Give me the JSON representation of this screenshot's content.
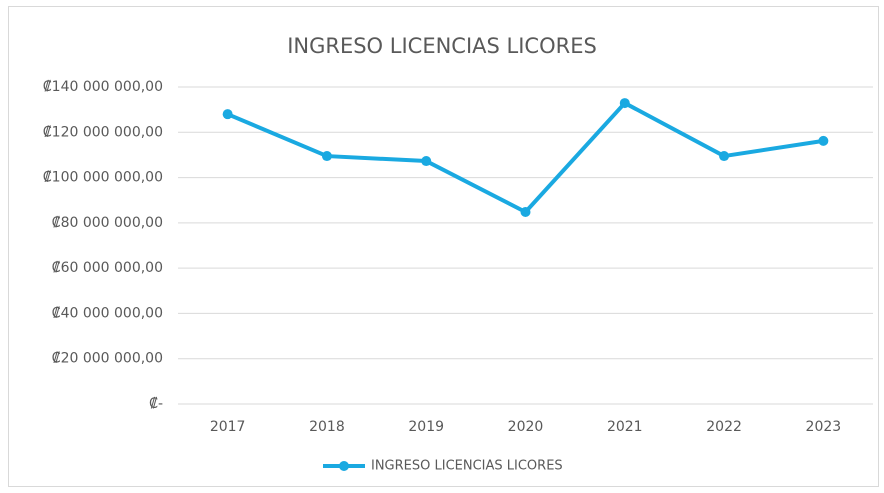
{
  "chart_data": {
    "type": "line",
    "title": "INGRESO LICENCIAS LICORES",
    "categories": [
      "2017",
      "2018",
      "2019",
      "2020",
      "2021",
      "2022",
      "2023"
    ],
    "series": [
      {
        "name": "INGRESO LICENCIAS LICORES",
        "color": "#1aa9e1",
        "values": [
          128000000,
          109500000,
          107300000,
          84800000,
          132900000,
          109500000,
          116200000
        ]
      }
    ],
    "ylim": [
      0,
      140000000
    ],
    "yticks": [
      {
        "value": 0,
        "label": "₡-"
      },
      {
        "value": 20000000,
        "label": "₡20 000 000,00"
      },
      {
        "value": 40000000,
        "label": "₡40 000 000,00"
      },
      {
        "value": 60000000,
        "label": "₡60 000 000,00"
      },
      {
        "value": 80000000,
        "label": "₡80 000 000,00"
      },
      {
        "value": 100000000,
        "label": "₡100 000 000,00"
      },
      {
        "value": 120000000,
        "label": "₡120 000 000,00"
      },
      {
        "value": 140000000,
        "label": "₡140 000 000,00"
      }
    ],
    "grid": true,
    "legend": "bottom"
  }
}
